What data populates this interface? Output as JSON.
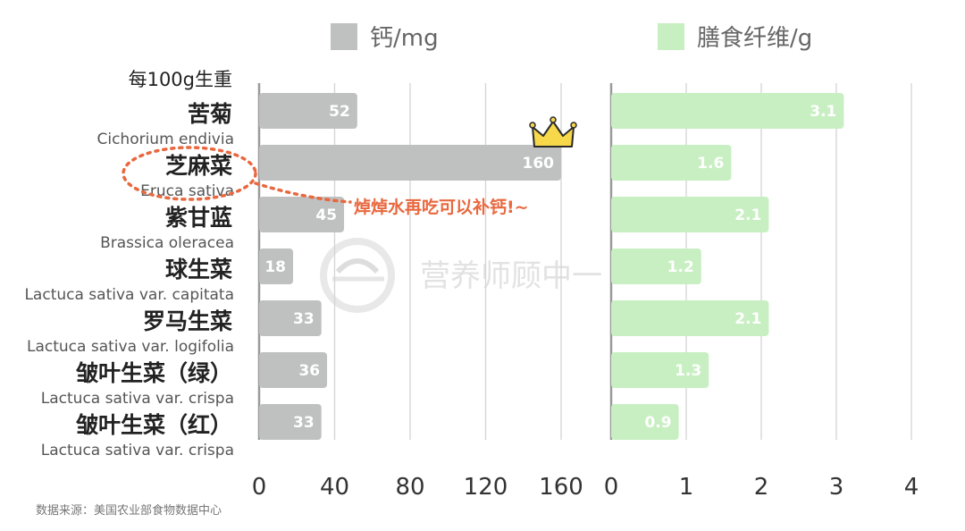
{
  "chart_data": {
    "type": "bar",
    "orientation": "horizontal",
    "unit_note": "每100g生重",
    "categories": [
      {
        "name": "苦菊",
        "latin": "Cichorium endivia"
      },
      {
        "name": "芝麻菜",
        "latin": "Eruca sativa"
      },
      {
        "name": "紫甘蓝",
        "latin": "Brassica oleracea"
      },
      {
        "name": "球生菜",
        "latin": "Lactuca sativa var. capitata"
      },
      {
        "name": "罗马生菜",
        "latin": "Lactuca sativa var. logifolia"
      },
      {
        "name": "皱叶生菜（绿）",
        "latin": "Lactuca sativa var. crispa"
      },
      {
        "name": "皱叶生菜（红）",
        "latin": "Lactuca sativa var. crispa"
      }
    ],
    "series": [
      {
        "name": "钙/mg",
        "color": "#bfc0c0",
        "values": [
          52,
          160,
          45,
          18,
          33,
          36,
          33
        ],
        "value_labels": [
          "52",
          "160",
          "45",
          "18",
          "33",
          "36",
          "33"
        ],
        "xlim": [
          0,
          160
        ],
        "ticks": [
          0,
          40,
          80,
          120,
          160
        ]
      },
      {
        "name": "膳食纤维/g",
        "color": "#c8efc2",
        "values": [
          3.1,
          1.6,
          2.1,
          1.2,
          2.1,
          1.3,
          0.9
        ],
        "value_labels": [
          "3.1",
          "1.6",
          "2.1",
          "1.2",
          "2.1",
          "1.3",
          "0.9"
        ],
        "xlim": [
          0,
          4
        ],
        "ticks": [
          0,
          1,
          2,
          3,
          4
        ]
      }
    ],
    "grid": true,
    "legend": "top",
    "annotation": "焯焯水再吃可以补钙!~",
    "highlight": {
      "category": "芝麻菜",
      "icon": "crown-icon",
      "circle_color": "#e8683f"
    },
    "source": "数据来源：美国农业部食物数据中心"
  },
  "watermark": "营养师顾中一"
}
